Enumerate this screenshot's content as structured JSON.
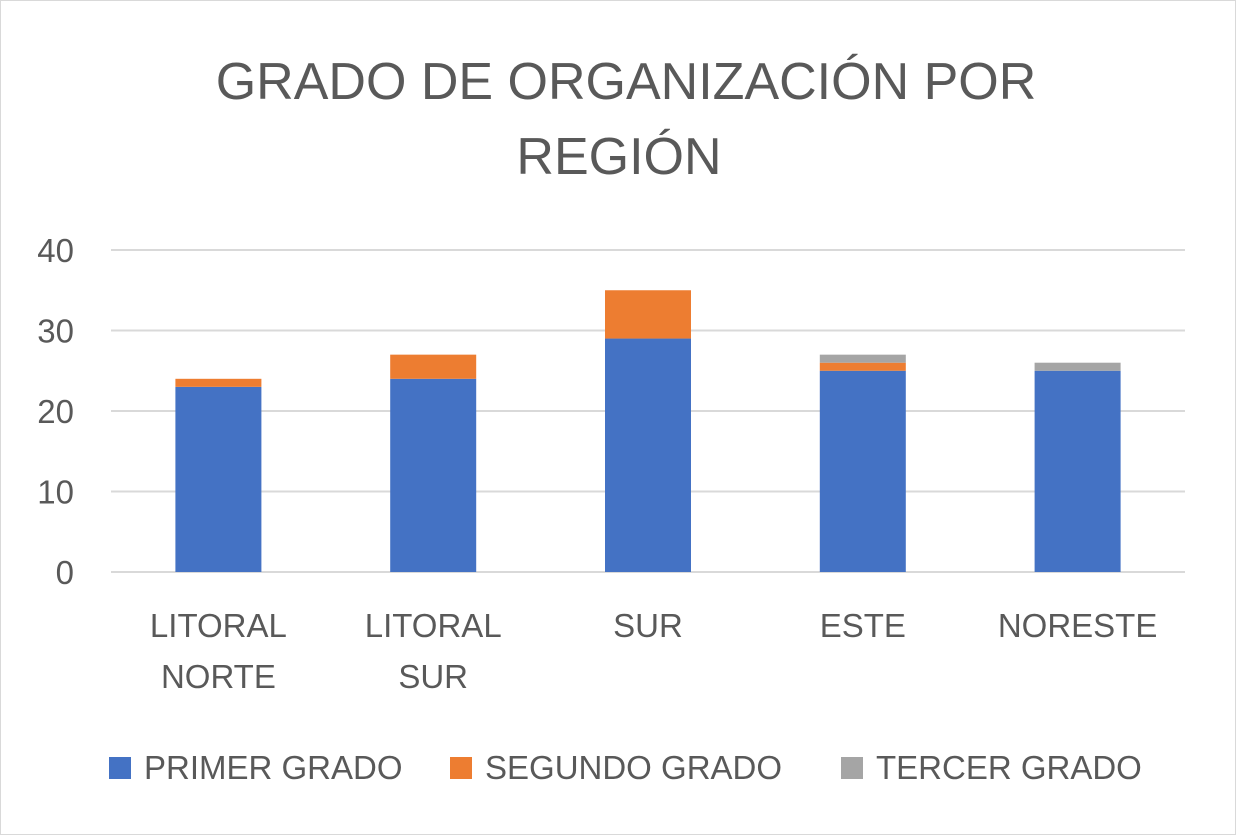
{
  "chart_data": {
    "type": "bar",
    "stacked": true,
    "title": "GRADO DE ORGANIZACIÓN POR REGIÓN",
    "title_lines": [
      "GRADO DE ORGANIZACIÓN POR",
      "REGIÓN"
    ],
    "categories": [
      "LITORAL NORTE",
      "LITORAL SUR",
      "SUR",
      "ESTE",
      "NORESTE"
    ],
    "category_lines": [
      [
        "LITORAL",
        "NORTE"
      ],
      [
        "LITORAL",
        "SUR"
      ],
      [
        "SUR"
      ],
      [
        "ESTE"
      ],
      [
        "NORESTE"
      ]
    ],
    "series": [
      {
        "name": "PRIMER GRADO",
        "color": "#4472c4",
        "values": [
          23,
          24,
          29,
          25,
          25
        ]
      },
      {
        "name": "SEGUNDO GRADO",
        "color": "#ed7d31",
        "values": [
          1,
          3,
          6,
          1,
          0
        ]
      },
      {
        "name": "TERCER GRADO",
        "color": "#a5a5a5",
        "values": [
          0,
          0,
          0,
          1,
          1
        ]
      }
    ],
    "ylim": [
      0,
      40
    ],
    "yticks": [
      0,
      10,
      20,
      30,
      40
    ],
    "xlabel": "",
    "ylabel": "",
    "grid": true,
    "legend_position": "bottom"
  }
}
